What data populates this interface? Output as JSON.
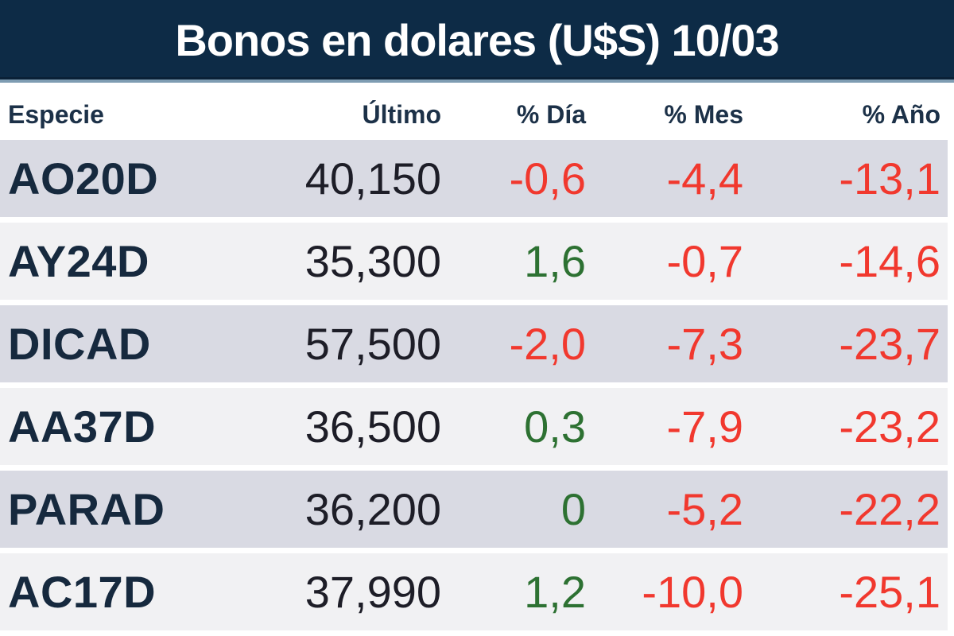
{
  "title": "Bonos en dolares (U$S) 10/03",
  "colors": {
    "header_bg": "#0d2b46",
    "header_text": "#ffffff",
    "divider": "#7e9cb2",
    "column_header_text": "#1c3148",
    "ticker_text": "#16293e",
    "price_text": "#1d1d27",
    "negative": "#f1382e",
    "positive": "#2d7132",
    "row_odd_bg": "#d9dae3",
    "row_even_bg": "#f1f1f3"
  },
  "table": {
    "columns": [
      {
        "label": "Especie"
      },
      {
        "label": "Último"
      },
      {
        "label": "% Día"
      },
      {
        "label": "% Mes"
      },
      {
        "label": "% Año"
      }
    ],
    "rows": [
      {
        "especie": "AO20D",
        "ultimo": "40,150",
        "dia": "-0,6",
        "dia_trend": "negative",
        "mes": "-4,4",
        "mes_trend": "negative",
        "ano": "-13,1",
        "ano_trend": "negative"
      },
      {
        "especie": "AY24D",
        "ultimo": "35,300",
        "dia": "1,6",
        "dia_trend": "positive",
        "mes": "-0,7",
        "mes_trend": "negative",
        "ano": "-14,6",
        "ano_trend": "negative"
      },
      {
        "especie": "DICAD",
        "ultimo": "57,500",
        "dia": "-2,0",
        "dia_trend": "negative",
        "mes": "-7,3",
        "mes_trend": "negative",
        "ano": "-23,7",
        "ano_trend": "negative"
      },
      {
        "especie": "AA37D",
        "ultimo": "36,500",
        "dia": "0,3",
        "dia_trend": "positive",
        "mes": "-7,9",
        "mes_trend": "negative",
        "ano": "-23,2",
        "ano_trend": "negative"
      },
      {
        "especie": "PARAD",
        "ultimo": "36,200",
        "dia": "0",
        "dia_trend": "positive",
        "mes": "-5,2",
        "mes_trend": "negative",
        "ano": "-22,2",
        "ano_trend": "negative"
      },
      {
        "especie": "AC17D",
        "ultimo": "37,990",
        "dia": "1,2",
        "dia_trend": "positive",
        "mes": "-10,0",
        "mes_trend": "negative",
        "ano": "-25,1",
        "ano_trend": "negative"
      }
    ]
  },
  "chart_data": {
    "type": "table",
    "title": "Bonos en dolares (U$S) 10/03",
    "columns": [
      "Especie",
      "Último",
      "% Día",
      "% Mes",
      "% Año"
    ],
    "rows": [
      [
        "AO20D",
        40.15,
        -0.6,
        -4.4,
        -13.1
      ],
      [
        "AY24D",
        35.3,
        1.6,
        -0.7,
        -14.6
      ],
      [
        "DICAD",
        57.5,
        -2.0,
        -7.3,
        -23.7
      ],
      [
        "AA37D",
        36.5,
        0.3,
        -7.9,
        -23.2
      ],
      [
        "PARAD",
        36.2,
        0,
        -5.2,
        -22.2
      ],
      [
        "AC17D",
        37.99,
        1.2,
        -10.0,
        -25.1
      ]
    ],
    "notes": "Decimal comma formatting (Argentine convention); red = negative change, green = zero/positive change"
  }
}
